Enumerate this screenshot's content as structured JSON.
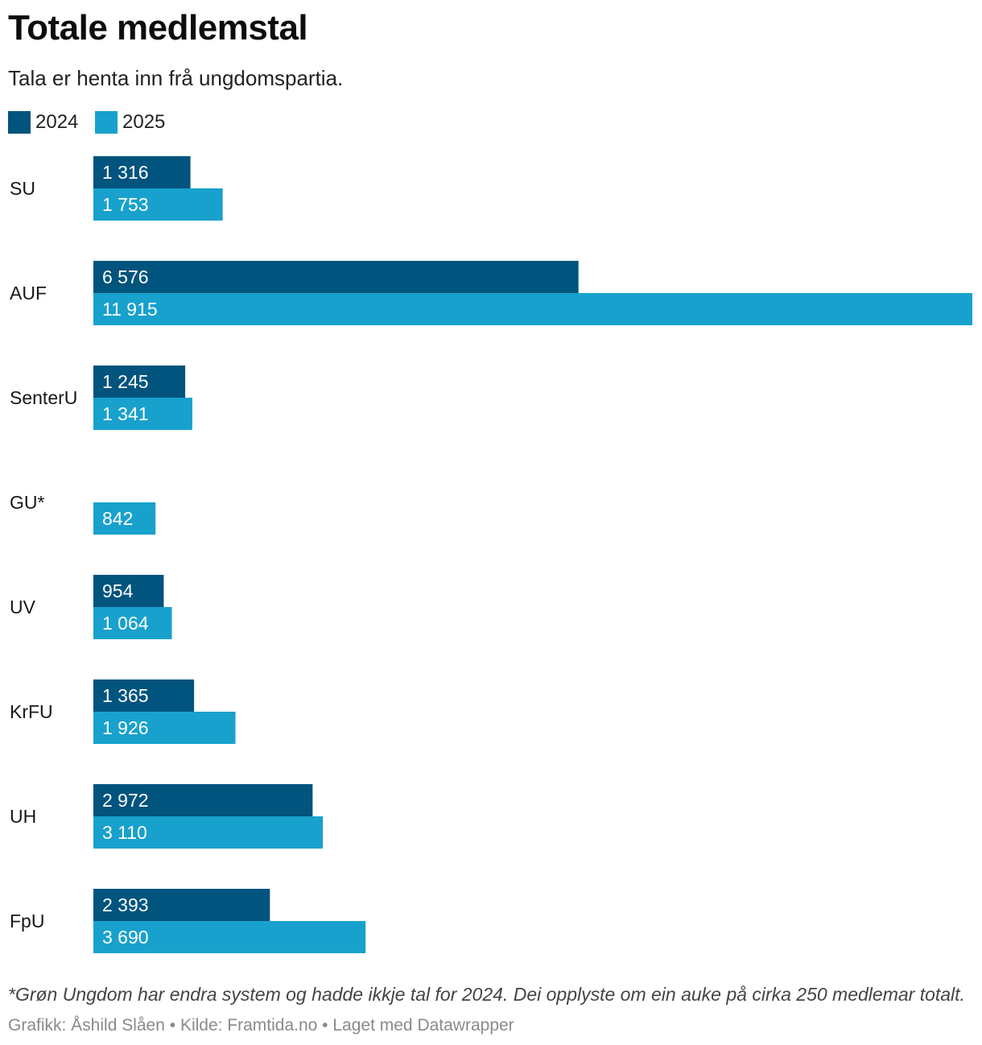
{
  "chart_data": {
    "type": "bar",
    "orientation": "horizontal",
    "title": "Totale medlemstal",
    "subtitle": "Tala er henta inn frå ungdomspartia.",
    "categories": [
      "SU",
      "AUF",
      "SenterU",
      "GU*",
      "UV",
      "KrFU",
      "UH",
      "FpU"
    ],
    "series": [
      {
        "name": "2024",
        "color": "#00547d",
        "values": [
          1316,
          6576,
          1245,
          null,
          954,
          1365,
          2972,
          2393
        ],
        "labels": [
          "1 316",
          "6 576",
          "1 245",
          "",
          "954",
          "1 365",
          "2 972",
          "2 393"
        ]
      },
      {
        "name": "2025",
        "color": "#18a1cd",
        "values": [
          1753,
          11915,
          1341,
          842,
          1064,
          1926,
          3110,
          3690
        ],
        "labels": [
          "1 753",
          "11 915",
          "1 341",
          "842",
          "1 064",
          "1 926",
          "3 110",
          "3 690"
        ]
      }
    ],
    "xlim": [
      0,
      11915
    ],
    "grid": false,
    "legend": "top-left",
    "footnote": "*Grøn Ungdom har endra system og hadde ikkje tal for 2024. Dei opplyste om ein auke på cirka 250 medlemar totalt.",
    "credit": "Grafikk: Åshild Slåen • Kilde: Framtida.no • Laget med Datawrapper"
  }
}
